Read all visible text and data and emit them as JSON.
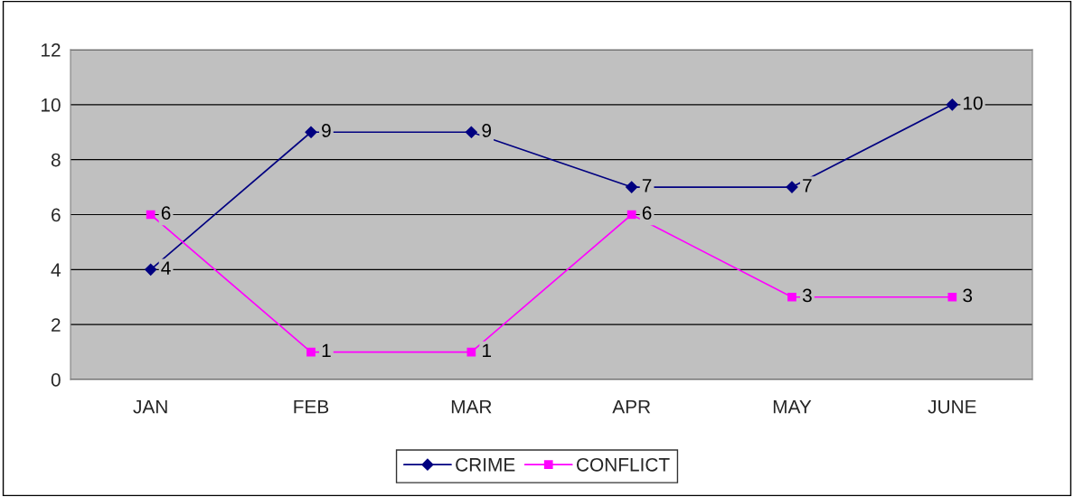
{
  "chart_data": {
    "type": "line",
    "categories": [
      "JAN",
      "FEB",
      "MAR",
      "APR",
      "MAY",
      "JUNE"
    ],
    "series": [
      {
        "name": "CRIME",
        "color": "#000080",
        "marker": "diamond",
        "values": [
          4,
          9,
          9,
          7,
          7,
          10
        ]
      },
      {
        "name": "CONFLICT",
        "color": "#ff00ff",
        "marker": "square",
        "values": [
          6,
          1,
          1,
          6,
          3,
          3
        ]
      }
    ],
    "ylim": [
      0,
      12
    ],
    "yticks": [
      0,
      2,
      4,
      6,
      8,
      10,
      12
    ],
    "grid": "y",
    "legend": "bottom",
    "data_labels": true,
    "line_style": "solid"
  }
}
